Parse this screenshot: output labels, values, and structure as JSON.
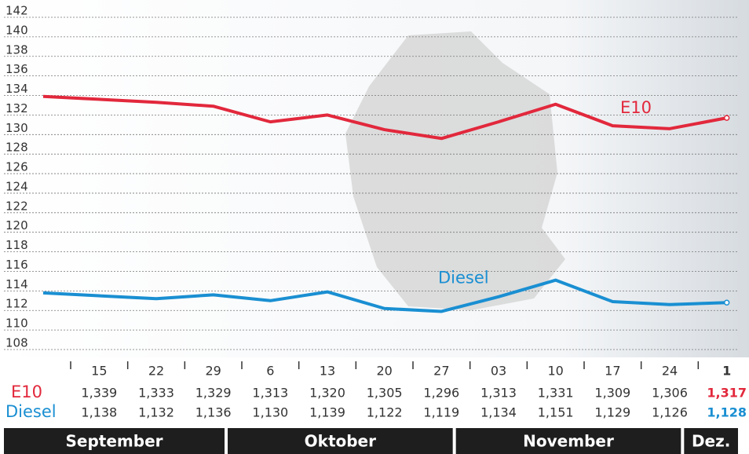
{
  "chart_data": {
    "type": "line",
    "categories": [
      "15",
      "22",
      "29",
      "6",
      "13",
      "20",
      "27",
      "03",
      "10",
      "17",
      "24",
      "1"
    ],
    "months": [
      "September",
      "Oktober",
      "November",
      "Dez."
    ],
    "series": [
      {
        "name": "E10",
        "color": "#e2283c",
        "values": [
          133.9,
          133.3,
          132.9,
          131.3,
          132.0,
          130.5,
          129.6,
          131.3,
          133.1,
          130.9,
          130.6,
          131.7
        ],
        "value_labels": [
          "1,339",
          "1,333",
          "1,329",
          "1,313",
          "1,320",
          "1,305",
          "1,296",
          "1,313",
          "1,331",
          "1,309",
          "1,306",
          "1,317"
        ]
      },
      {
        "name": "Diesel",
        "color": "#1a8fd2",
        "values": [
          113.8,
          113.2,
          113.6,
          113.0,
          113.9,
          112.2,
          111.9,
          113.4,
          115.1,
          112.9,
          112.6,
          112.8
        ],
        "value_labels": [
          "1,138",
          "1,132",
          "1,136",
          "1,130",
          "1,139",
          "1,122",
          "1,119",
          "1,134",
          "1,151",
          "1,129",
          "1,126",
          "1,128"
        ]
      }
    ],
    "ylim": [
      108,
      142
    ],
    "yticks": [
      108,
      110,
      112,
      114,
      116,
      118,
      120,
      122,
      124,
      126,
      128,
      130,
      132,
      134,
      136,
      138,
      140,
      142
    ],
    "grid": true
  }
}
